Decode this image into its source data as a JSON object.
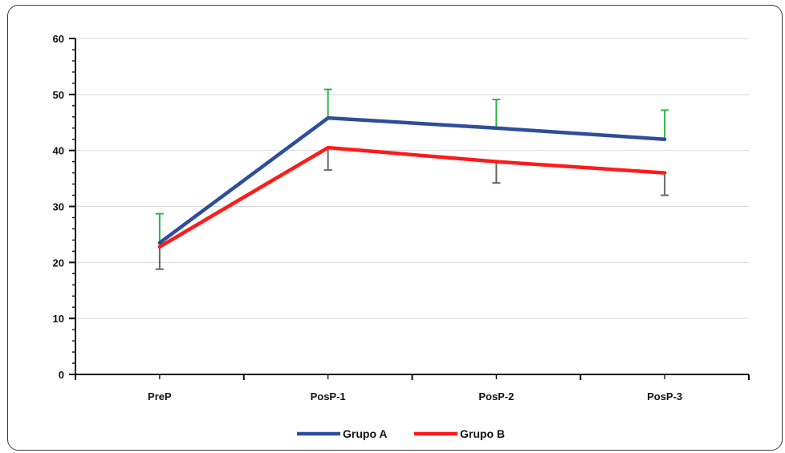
{
  "chart_data": {
    "type": "line",
    "title": "",
    "xlabel": "",
    "ylabel": "",
    "categories": [
      "PreP",
      "PosP-1",
      "PosP-2",
      "PosP-3"
    ],
    "ylim": [
      0,
      60
    ],
    "yticks": [
      0,
      10,
      20,
      30,
      40,
      50,
      60
    ],
    "grid": "horizontal",
    "legend_position": "bottom-center",
    "series": [
      {
        "name": "Grupo A",
        "color": "#2E4E9B",
        "values": [
          23.5,
          45.8,
          44.0,
          42.0
        ],
        "error_plus": [
          5.2,
          5.1,
          5.1,
          5.2
        ],
        "error_color": "#2DB34A",
        "error_direction": "up"
      },
      {
        "name": "Grupo B",
        "color": "#FF1A1A",
        "values": [
          22.8,
          40.5,
          38.0,
          36.0
        ],
        "error_minus": [
          4.0,
          4.0,
          3.8,
          4.0
        ],
        "error_color": "#666666",
        "error_direction": "down"
      }
    ]
  }
}
